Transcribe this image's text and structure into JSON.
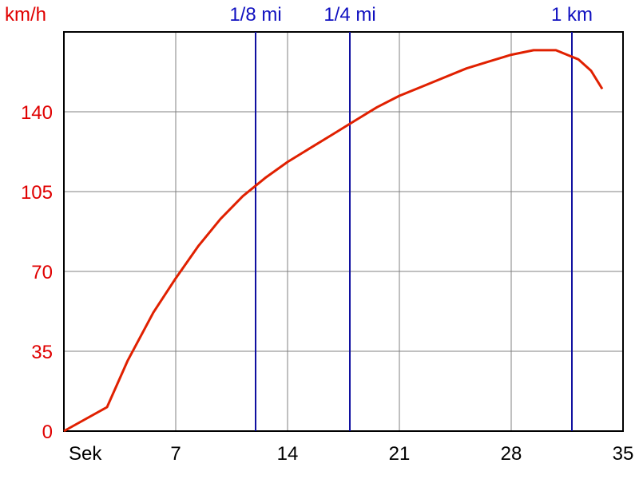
{
  "chart_data": {
    "type": "line",
    "ylabel": "km/h",
    "xlabel": "Sek",
    "xlim": [
      0,
      35
    ],
    "ylim": [
      0,
      175
    ],
    "x_ticks": [
      7,
      14,
      21,
      28,
      35
    ],
    "y_ticks": [
      0,
      35,
      70,
      105,
      140
    ],
    "grid": true,
    "colors": {
      "series": "#e02000",
      "markers": "#1010a0",
      "grid": "#808080",
      "y_tick_text": "#e00000"
    },
    "series": [
      {
        "x": [
          0,
          2.7,
          4,
          5.6,
          7,
          8.4,
          9.8,
          11.2,
          12.6,
          14,
          15.4,
          16.8,
          18.2,
          19.6,
          21,
          22.4,
          23.8,
          25.2,
          26.6,
          28,
          29.4,
          30.8,
          31.5,
          32.2,
          33,
          33.7
        ],
        "y": [
          0,
          10.5,
          31,
          52,
          67,
          81,
          93,
          103,
          111,
          118,
          124,
          130,
          136,
          142,
          147,
          151,
          155,
          159,
          162,
          165,
          167,
          167,
          165,
          163,
          158,
          150
        ]
      }
    ],
    "markers": [
      {
        "label": "1/8 mi",
        "x": 12.0
      },
      {
        "label": "1/4 mi",
        "x": 17.9
      },
      {
        "label": "1 km",
        "x": 31.8
      }
    ]
  }
}
